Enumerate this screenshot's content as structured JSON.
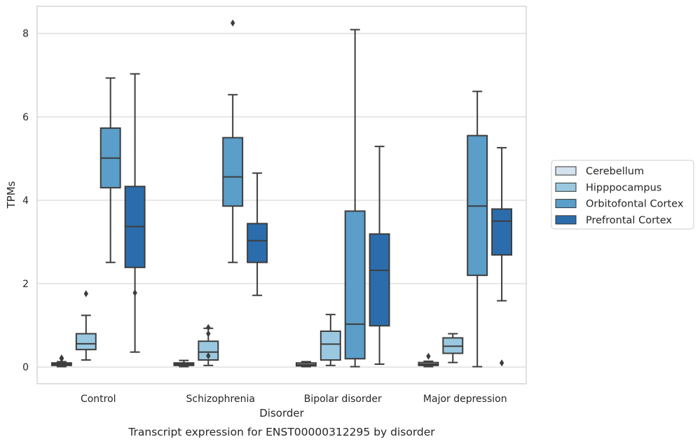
{
  "chart_data": {
    "type": "boxplot",
    "title": "",
    "caption": "Transcript expression for ENST00000312295 by disorder",
    "xlabel": "Disorder",
    "ylabel": "TPMs",
    "ylim": [
      -0.4,
      8.65
    ],
    "yticks": [
      0,
      2,
      4,
      6,
      8
    ],
    "y_tick_labels": [
      "0",
      "2",
      "4",
      "6",
      "8"
    ],
    "grid": "horizontal",
    "legend_position": "right",
    "categories": [
      "Control",
      "Schizophrenia",
      "Bipolar disorder",
      "Major depression"
    ],
    "series": [
      {
        "name": "Cerebellum",
        "color": "#d4e2ef",
        "boxes": [
          {
            "whislo": 0.01,
            "q1": 0.04,
            "med": 0.07,
            "q3": 0.1,
            "whishi": 0.13,
            "fliers": [
              0.2,
              0.22
            ]
          },
          {
            "whislo": 0.01,
            "q1": 0.04,
            "med": 0.07,
            "q3": 0.1,
            "whishi": 0.16,
            "fliers": []
          },
          {
            "whislo": 0.01,
            "q1": 0.03,
            "med": 0.06,
            "q3": 0.1,
            "whishi": 0.13,
            "fliers": []
          },
          {
            "whislo": 0.01,
            "q1": 0.04,
            "med": 0.07,
            "q3": 0.11,
            "whishi": 0.14,
            "fliers": [
              0.26
            ]
          }
        ]
      },
      {
        "name": "Hipppocampus",
        "color": "#9ac8e0",
        "boxes": [
          {
            "whislo": 0.17,
            "q1": 0.42,
            "med": 0.56,
            "q3": 0.8,
            "whishi": 1.24,
            "fliers": [
              1.76
            ]
          },
          {
            "whislo": 0.04,
            "q1": 0.17,
            "med": 0.36,
            "q3": 0.62,
            "whishi": 0.93,
            "fliers": [
              0.95,
              0.8,
              0.27
            ]
          },
          {
            "whislo": 0.04,
            "q1": 0.17,
            "med": 0.55,
            "q3": 0.86,
            "whishi": 1.26,
            "fliers": []
          },
          {
            "whislo": 0.11,
            "q1": 0.33,
            "med": 0.5,
            "q3": 0.7,
            "whishi": 0.8,
            "fliers": []
          }
        ]
      },
      {
        "name": "Orbitofontal Cortex",
        "color": "#5a9ec9",
        "boxes": [
          {
            "whislo": 2.51,
            "q1": 4.3,
            "med": 5.01,
            "q3": 5.73,
            "whishi": 6.93,
            "fliers": []
          },
          {
            "whislo": 2.51,
            "q1": 3.86,
            "med": 4.56,
            "q3": 5.5,
            "whishi": 6.53,
            "fliers": [
              8.25
            ]
          },
          {
            "whislo": 0.01,
            "q1": 0.2,
            "med": 1.03,
            "q3": 3.74,
            "whishi": 8.09,
            "fliers": []
          },
          {
            "whislo": 0.01,
            "q1": 2.2,
            "med": 3.86,
            "q3": 5.55,
            "whishi": 6.61,
            "fliers": []
          }
        ]
      },
      {
        "name": "Prefrontal Cortex",
        "color": "#2b6dac",
        "boxes": [
          {
            "whislo": 0.36,
            "q1": 2.39,
            "med": 3.37,
            "q3": 4.33,
            "whishi": 7.03,
            "fliers": [
              1.78
            ]
          },
          {
            "whislo": 1.72,
            "q1": 2.51,
            "med": 3.03,
            "q3": 3.44,
            "whishi": 4.65,
            "fliers": []
          },
          {
            "whislo": 0.07,
            "q1": 0.99,
            "med": 2.32,
            "q3": 3.19,
            "whishi": 5.29,
            "fliers": []
          },
          {
            "whislo": 1.59,
            "q1": 2.69,
            "med": 3.5,
            "q3": 3.79,
            "whishi": 5.26,
            "fliers": [
              0.1
            ]
          }
        ]
      }
    ]
  }
}
